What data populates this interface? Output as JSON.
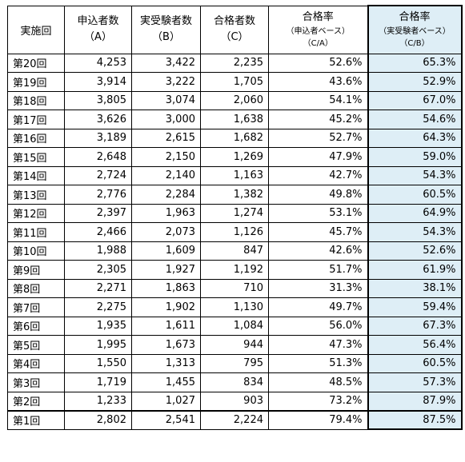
{
  "headers": {
    "round": "実施回",
    "applicants": {
      "line1": "申込者数",
      "line2": "（A）"
    },
    "examinees": {
      "line1": "実受験者数",
      "line2": "（B）"
    },
    "passers": {
      "line1": "合格者数",
      "line2": "（C）"
    },
    "rate_applicants": {
      "line1": "合格率",
      "line2": "（申込者ベース）",
      "line3": "（C/A）"
    },
    "rate_examinees": {
      "line1": "合格率",
      "line2": "（実受験者ベース）",
      "line3": "（C/B）"
    }
  },
  "colors": {
    "highlight": "#deeef6",
    "border": "#000000"
  },
  "rows": [
    {
      "round": "第20回",
      "applicants": "4,253",
      "examinees": "3,422",
      "passers": "2,235",
      "rate_a": "52.6%",
      "rate_b": "65.3%"
    },
    {
      "round": "第19回",
      "applicants": "3,914",
      "examinees": "3,222",
      "passers": "1,705",
      "rate_a": "43.6%",
      "rate_b": "52.9%"
    },
    {
      "round": "第18回",
      "applicants": "3,805",
      "examinees": "3,074",
      "passers": "2,060",
      "rate_a": "54.1%",
      "rate_b": "67.0%"
    },
    {
      "round": "第17回",
      "applicants": "3,626",
      "examinees": "3,000",
      "passers": "1,638",
      "rate_a": "45.2%",
      "rate_b": "54.6%"
    },
    {
      "round": "第16回",
      "applicants": "3,189",
      "examinees": "2,615",
      "passers": "1,682",
      "rate_a": "52.7%",
      "rate_b": "64.3%"
    },
    {
      "round": "第15回",
      "applicants": "2,648",
      "examinees": "2,150",
      "passers": "1,269",
      "rate_a": "47.9%",
      "rate_b": "59.0%"
    },
    {
      "round": "第14回",
      "applicants": "2,724",
      "examinees": "2,140",
      "passers": "1,163",
      "rate_a": "42.7%",
      "rate_b": "54.3%"
    },
    {
      "round": "第13回",
      "applicants": "2,776",
      "examinees": "2,284",
      "passers": "1,382",
      "rate_a": "49.8%",
      "rate_b": "60.5%"
    },
    {
      "round": "第12回",
      "applicants": "2,397",
      "examinees": "1,963",
      "passers": "1,274",
      "rate_a": "53.1%",
      "rate_b": "64.9%"
    },
    {
      "round": "第11回",
      "applicants": "2,466",
      "examinees": "2,073",
      "passers": "1,126",
      "rate_a": "45.7%",
      "rate_b": "54.3%"
    },
    {
      "round": "第10回",
      "applicants": "1,988",
      "examinees": "1,609",
      "passers": "847",
      "rate_a": "42.6%",
      "rate_b": "52.6%"
    },
    {
      "round": "第9回",
      "applicants": "2,305",
      "examinees": "1,927",
      "passers": "1,192",
      "rate_a": "51.7%",
      "rate_b": "61.9%"
    },
    {
      "round": "第8回",
      "applicants": "2,271",
      "examinees": "1,863",
      "passers": "710",
      "rate_a": "31.3%",
      "rate_b": "38.1%"
    },
    {
      "round": "第7回",
      "applicants": "2,275",
      "examinees": "1,902",
      "passers": "1,130",
      "rate_a": "49.7%",
      "rate_b": "59.4%"
    },
    {
      "round": "第6回",
      "applicants": "1,935",
      "examinees": "1,611",
      "passers": "1,084",
      "rate_a": "56.0%",
      "rate_b": "67.3%"
    },
    {
      "round": "第5回",
      "applicants": "1,995",
      "examinees": "1,673",
      "passers": "944",
      "rate_a": "47.3%",
      "rate_b": "56.4%"
    },
    {
      "round": "第4回",
      "applicants": "1,550",
      "examinees": "1,313",
      "passers": "795",
      "rate_a": "51.3%",
      "rate_b": "60.5%"
    },
    {
      "round": "第3回",
      "applicants": "1,719",
      "examinees": "1,455",
      "passers": "834",
      "rate_a": "48.5%",
      "rate_b": "57.3%"
    },
    {
      "round": "第2回",
      "applicants": "1,233",
      "examinees": "1,027",
      "passers": "903",
      "rate_a": "73.2%",
      "rate_b": "87.9%"
    },
    {
      "round": "第1回",
      "applicants": "2,802",
      "examinees": "2,541",
      "passers": "2,224",
      "rate_a": "79.4%",
      "rate_b": "87.5%"
    }
  ]
}
